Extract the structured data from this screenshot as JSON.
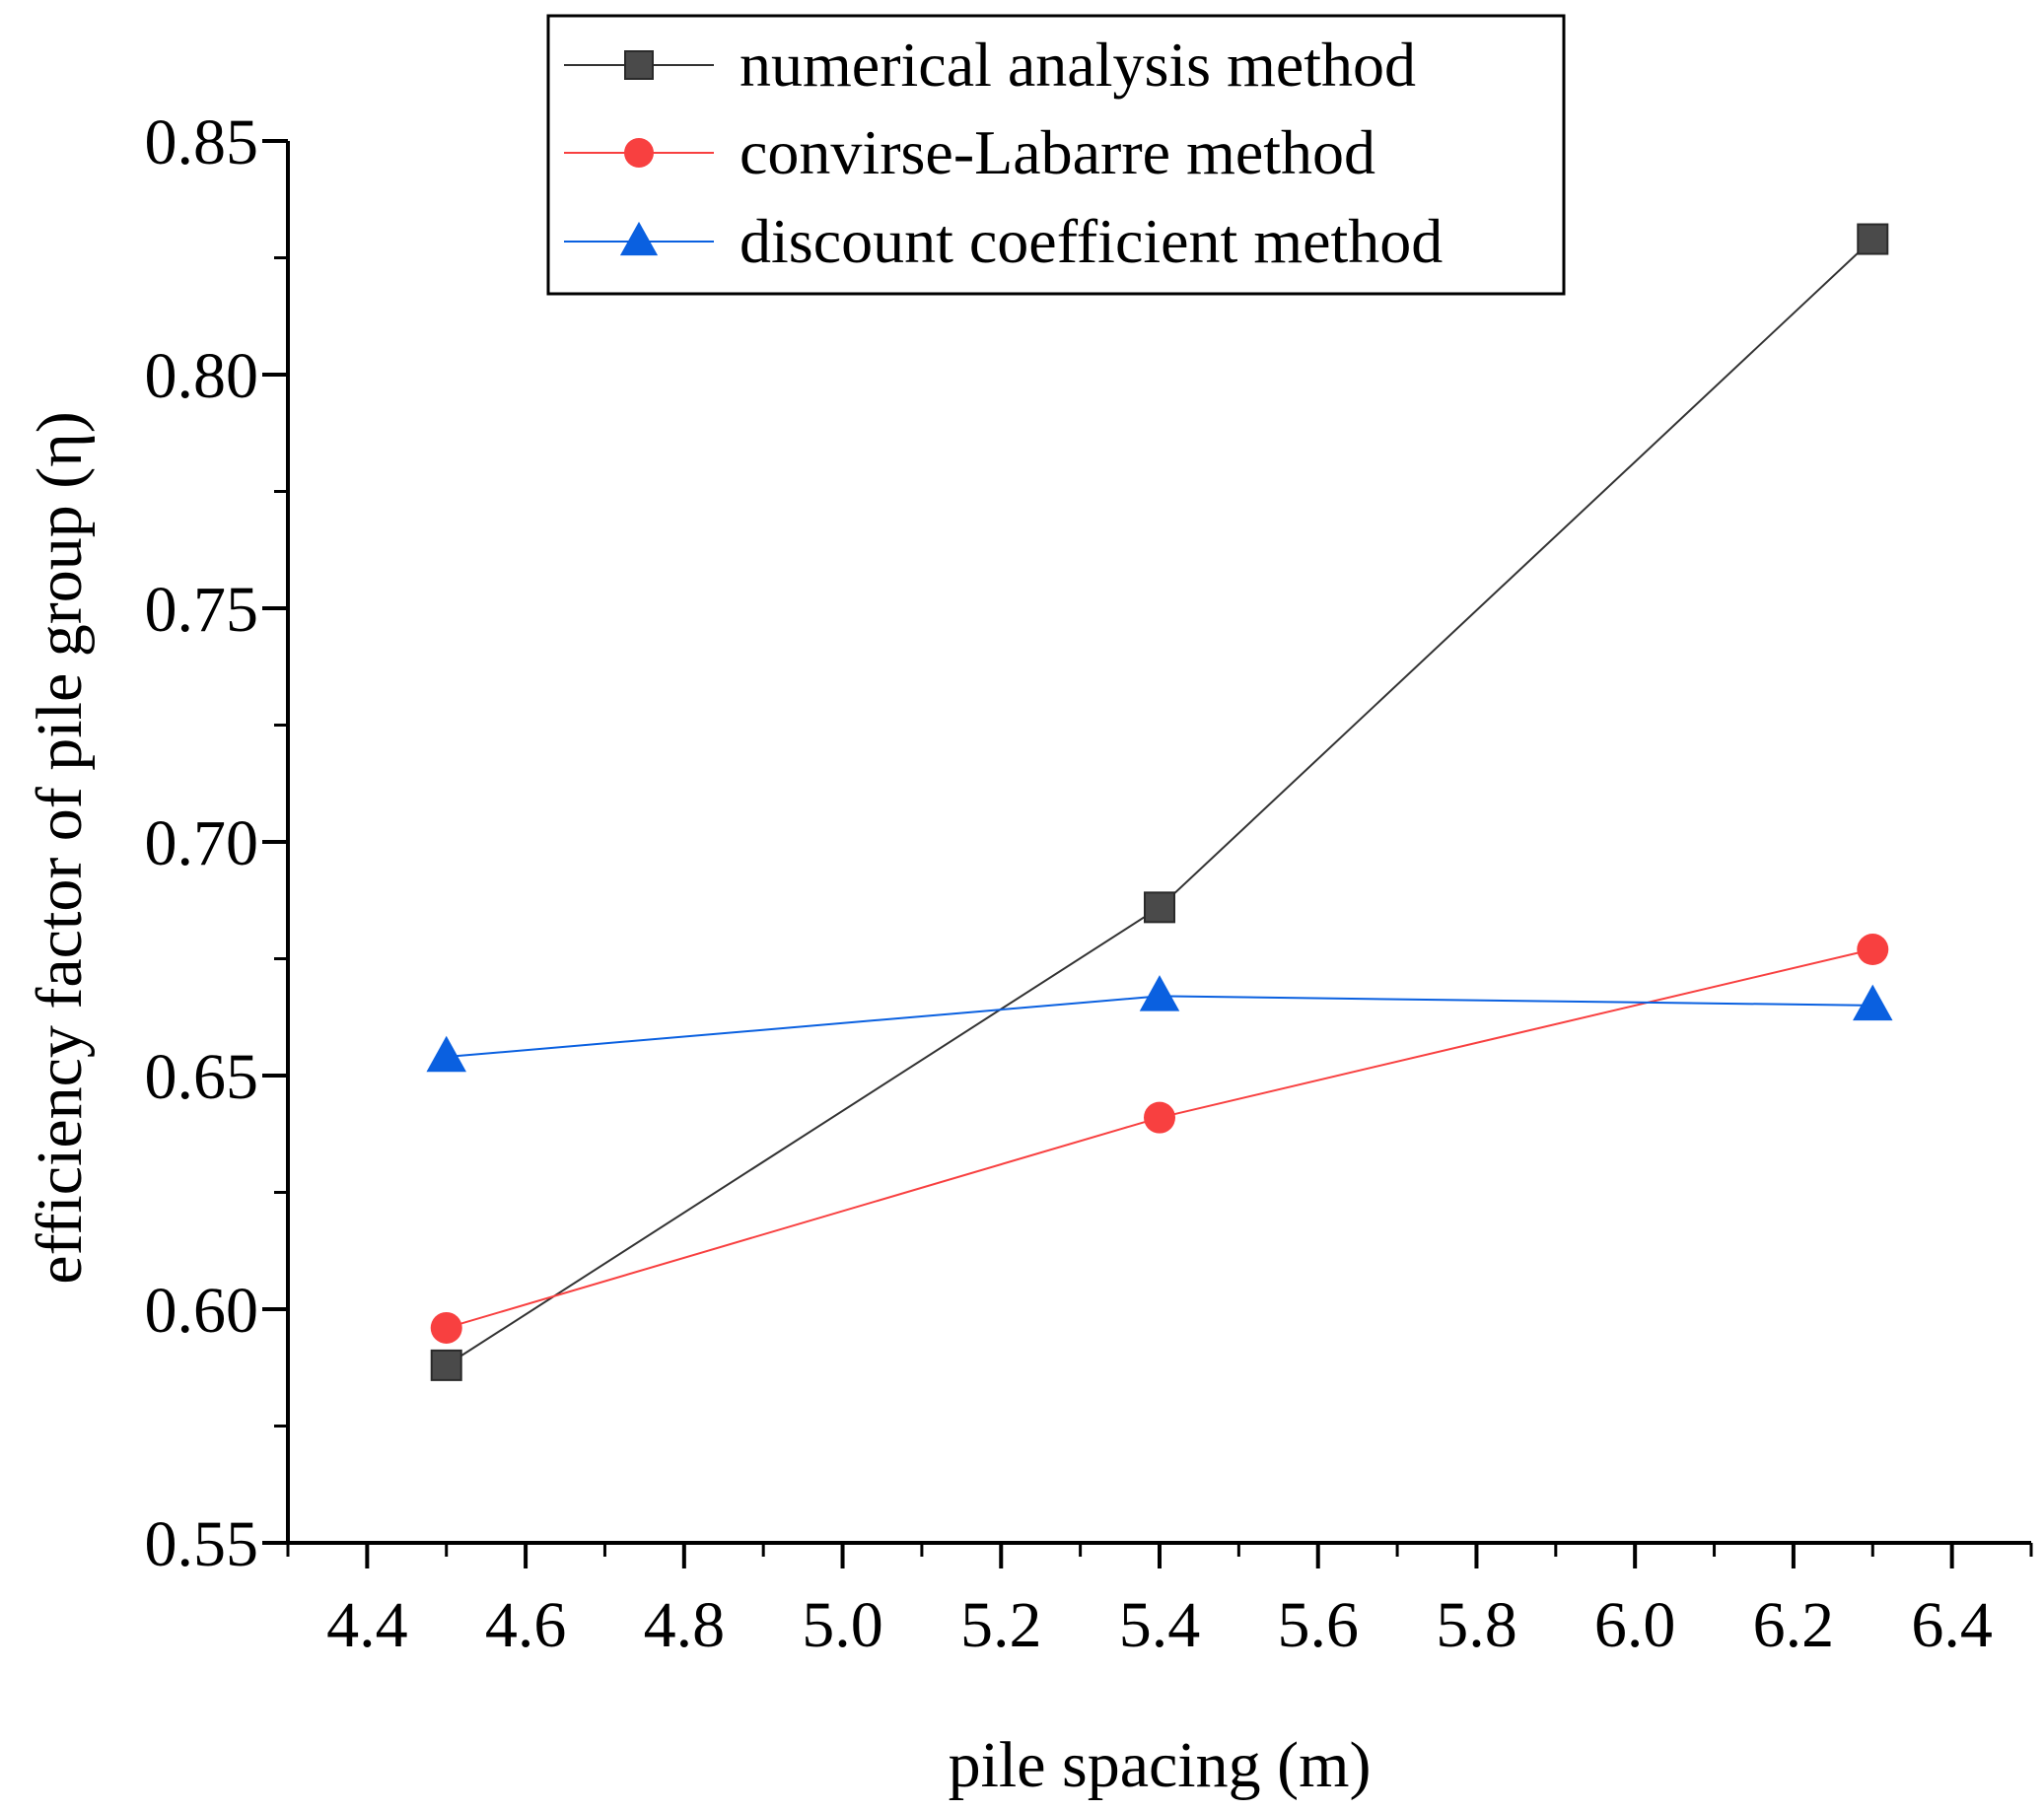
{
  "chart_data": {
    "type": "line",
    "title": "",
    "xlabel": "pile spacing (m)",
    "ylabel": "efficiency factor of pile group (η)",
    "xlim": [
      4.3,
      6.5
    ],
    "ylim": [
      0.55,
      0.85
    ],
    "x_ticks": [
      "4.4",
      "4.6",
      "4.8",
      "5.0",
      "5.2",
      "5.4",
      "5.6",
      "5.8",
      "6.0",
      "6.2",
      "6.4"
    ],
    "y_ticks": [
      "0.55",
      "0.60",
      "0.65",
      "0.70",
      "0.75",
      "0.80",
      "0.85"
    ],
    "x": [
      4.5,
      5.4,
      6.3
    ],
    "series": [
      {
        "name": "numerical analysis method",
        "values": [
          0.588,
          0.686,
          0.829
        ],
        "color": "#4a4a4a",
        "line_color": "#333333",
        "marker": "square"
      },
      {
        "name": "convirse-Labarre method",
        "values": [
          0.596,
          0.641,
          0.677
        ],
        "color": "#f84040",
        "line_color": "#f84040",
        "marker": "circle"
      },
      {
        "name": "discount coefficient method",
        "values": [
          0.654,
          0.667,
          0.665
        ],
        "color": "#0a60e0",
        "line_color": "#0a60e0",
        "marker": "triangle"
      }
    ],
    "legend_position": "top-center",
    "grid": false
  }
}
